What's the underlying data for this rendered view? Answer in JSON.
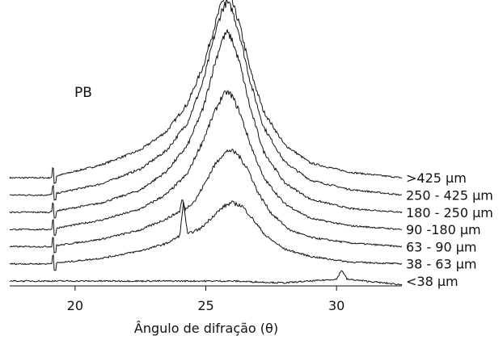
{
  "chart_data": {
    "type": "line",
    "title": "",
    "xlabel": "Ângulo de difração (θ)",
    "ylabel": "",
    "xlim": [
      17.5,
      32.5
    ],
    "xticks": [
      20,
      25,
      30
    ],
    "xtick_labels": [
      "20",
      "25",
      "30"
    ],
    "y_axis_shown": false,
    "grid": false,
    "legend": "labels at right end of each trace",
    "annotations": [
      {
        "text": "PB",
        "x": 18.1
      }
    ],
    "series": [
      {
        "name": ">425 µm",
        "points": [
          [
            17.5,
            0.0
          ],
          [
            19.0,
            0.0
          ],
          [
            21.0,
            0.7
          ],
          [
            22.5,
            1.5
          ],
          [
            23.5,
            2.5
          ],
          [
            24.3,
            4.0
          ],
          [
            24.9,
            6.0
          ],
          [
            25.3,
            8.0
          ],
          [
            25.6,
            9.4
          ],
          [
            25.8,
            9.9
          ],
          [
            26.0,
            9.5
          ],
          [
            26.3,
            8.2
          ],
          [
            26.7,
            5.8
          ],
          [
            27.2,
            3.6
          ],
          [
            28.0,
            1.8
          ],
          [
            29.0,
            0.8
          ],
          [
            30.5,
            0.3
          ],
          [
            32.5,
            0.0
          ]
        ]
      },
      {
        "name": "250 - 425 µm",
        "points": [
          [
            17.5,
            0.0
          ],
          [
            19.0,
            0.0
          ],
          [
            21.0,
            0.6
          ],
          [
            22.5,
            1.4
          ],
          [
            23.5,
            2.4
          ],
          [
            24.3,
            3.9
          ],
          [
            24.9,
            6.1
          ],
          [
            25.3,
            8.4
          ],
          [
            25.6,
            9.9
          ],
          [
            25.8,
            10.4
          ],
          [
            26.0,
            10.0
          ],
          [
            26.3,
            8.6
          ],
          [
            26.7,
            6.1
          ],
          [
            27.2,
            3.7
          ],
          [
            28.0,
            1.8
          ],
          [
            29.0,
            0.8
          ],
          [
            30.5,
            0.3
          ],
          [
            32.5,
            0.0
          ]
        ]
      },
      {
        "name": "180 - 250 µm",
        "points": [
          [
            17.5,
            0.0
          ],
          [
            19.0,
            0.0
          ],
          [
            21.0,
            0.5
          ],
          [
            22.5,
            1.2
          ],
          [
            23.5,
            2.2
          ],
          [
            24.3,
            3.6
          ],
          [
            24.9,
            5.6
          ],
          [
            25.3,
            7.8
          ],
          [
            25.6,
            9.2
          ],
          [
            25.8,
            9.7
          ],
          [
            26.0,
            9.3
          ],
          [
            26.3,
            8.0
          ],
          [
            26.7,
            5.6
          ],
          [
            27.2,
            3.3
          ],
          [
            28.0,
            1.6
          ],
          [
            29.0,
            0.7
          ],
          [
            30.5,
            0.2
          ],
          [
            32.5,
            0.0
          ]
        ]
      },
      {
        "name": "90 -180 µm",
        "points": [
          [
            17.5,
            0.0
          ],
          [
            19.0,
            0.0
          ],
          [
            21.0,
            0.5
          ],
          [
            22.5,
            1.1
          ],
          [
            23.5,
            1.9
          ],
          [
            24.3,
            3.0
          ],
          [
            24.9,
            4.8
          ],
          [
            25.3,
            6.2
          ],
          [
            25.6,
            7.1
          ],
          [
            25.8,
            7.4
          ],
          [
            26.0,
            7.2
          ],
          [
            26.3,
            6.3
          ],
          [
            26.7,
            4.6
          ],
          [
            27.2,
            2.8
          ],
          [
            28.0,
            1.4
          ],
          [
            29.0,
            0.6
          ],
          [
            30.5,
            0.2
          ],
          [
            32.5,
            0.0
          ]
        ]
      },
      {
        "name": "63 - 90 µm",
        "points": [
          [
            17.5,
            0.0
          ],
          [
            19.0,
            0.0
          ],
          [
            21.0,
            0.4
          ],
          [
            22.5,
            0.9
          ],
          [
            23.5,
            1.5
          ],
          [
            24.0,
            1.9
          ],
          [
            24.1,
            2.6
          ],
          [
            24.2,
            2.0
          ],
          [
            24.6,
            2.5
          ],
          [
            25.0,
            3.5
          ],
          [
            25.3,
            4.3
          ],
          [
            25.6,
            4.9
          ],
          [
            25.9,
            5.2
          ],
          [
            26.2,
            5.0
          ],
          [
            26.6,
            4.2
          ],
          [
            27.0,
            2.9
          ],
          [
            27.5,
            1.8
          ],
          [
            28.2,
            0.9
          ],
          [
            29.0,
            0.5
          ],
          [
            30.5,
            0.2
          ],
          [
            32.5,
            0.0
          ]
        ]
      },
      {
        "name": "38 - 63 µm",
        "points": [
          [
            17.5,
            0.0
          ],
          [
            19.0,
            0.0
          ],
          [
            21.0,
            0.3
          ],
          [
            22.5,
            0.7
          ],
          [
            23.5,
            1.1
          ],
          [
            24.0,
            1.5
          ],
          [
            24.15,
            3.3
          ],
          [
            24.3,
            1.6
          ],
          [
            24.8,
            1.9
          ],
          [
            25.3,
            2.6
          ],
          [
            25.7,
            3.1
          ],
          [
            26.0,
            3.3
          ],
          [
            26.4,
            3.1
          ],
          [
            26.8,
            2.4
          ],
          [
            27.3,
            1.5
          ],
          [
            28.0,
            0.8
          ],
          [
            29.0,
            0.4
          ],
          [
            30.5,
            0.1
          ],
          [
            32.5,
            0.0
          ]
        ]
      },
      {
        "name": "<38 µm",
        "points": [
          [
            17.5,
            0.0
          ],
          [
            22.0,
            0.0
          ],
          [
            26.0,
            0.0
          ],
          [
            28.0,
            -0.1
          ],
          [
            30.0,
            0.1
          ],
          [
            30.2,
            0.6
          ],
          [
            30.4,
            0.1
          ],
          [
            32.5,
            -0.2
          ]
        ]
      }
    ]
  }
}
